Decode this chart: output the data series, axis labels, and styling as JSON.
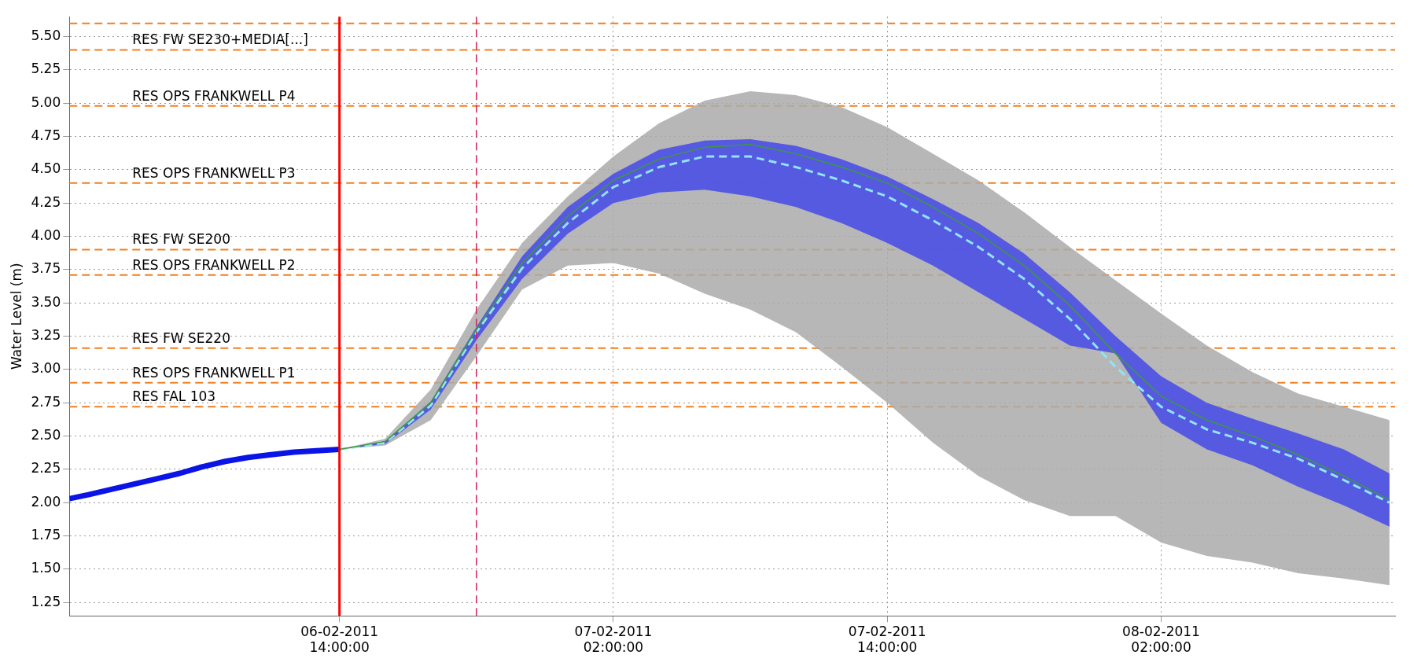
{
  "chart_data": {
    "type": "line",
    "ylabel": "Water Level (m)",
    "xlim": [
      "2011-02-06T02:10",
      "2011-02-08T12:15"
    ],
    "xticks": [
      {
        "value": "2011-02-06T14:00",
        "label": "06-02-2011\n14:00:00"
      },
      {
        "value": "2011-02-07T02:00",
        "label": "07-02-2011\n02:00:00"
      },
      {
        "value": "2011-02-07T14:00",
        "label": "07-02-2011\n14:00:00"
      },
      {
        "value": "2011-02-08T02:00",
        "label": "08-02-2011\n02:00:00"
      }
    ],
    "ylim": [
      1.15,
      5.65
    ],
    "yticks": [
      1.25,
      {
        "value": 1.5,
        "label": "1.50"
      },
      1.75,
      {
        "value": 2,
        "label": "2.00"
      },
      2.25,
      {
        "value": 2.5,
        "label": "2.50"
      },
      2.75,
      {
        "value": 3,
        "label": "3.00"
      },
      3.25,
      {
        "value": 3.5,
        "label": "3.50"
      },
      3.75,
      {
        "value": 4,
        "label": "4.00"
      },
      4.25,
      {
        "value": 4.5,
        "label": "4.50"
      },
      4.75,
      {
        "value": 5,
        "label": "5.00"
      },
      5.25,
      {
        "value": 5.5,
        "label": "5.50"
      }
    ],
    "grid": true,
    "legend": false,
    "marker": "none",
    "series": [
      {
        "type": "line",
        "color": "#0a14e6",
        "line_style": "solid",
        "x": [
          "2011-02-06T02:10",
          "2011-02-06T03:00",
          "2011-02-06T04:00",
          "2011-02-06T05:00",
          "2011-02-06T06:00",
          "2011-02-06T07:00",
          "2011-02-06T08:00",
          "2011-02-06T09:00",
          "2011-02-06T10:00",
          "2011-02-06T11:00",
          "2011-02-06T12:00",
          "2011-02-06T13:00",
          "2011-02-06T14:00"
        ],
        "values": [
          2.03,
          2.06,
          2.1,
          2.14,
          2.18,
          2.22,
          2.27,
          2.31,
          2.34,
          2.36,
          2.38,
          2.39,
          2.4
        ]
      },
      {
        "type": "line",
        "color": "#3c9a3c",
        "line_style": "solid",
        "x": [
          "2011-02-06T14:00",
          "2011-02-06T16:00",
          "2011-02-06T18:00",
          "2011-02-06T20:00",
          "2011-02-06T22:00",
          "2011-02-07T00:00",
          "2011-02-07T02:00",
          "2011-02-07T04:00",
          "2011-02-07T06:00",
          "2011-02-07T08:00",
          "2011-02-07T10:00",
          "2011-02-07T12:00",
          "2011-02-07T14:00",
          "2011-02-07T16:00",
          "2011-02-07T18:00",
          "2011-02-07T20:00",
          "2011-02-07T22:00",
          "2011-02-08T00:00",
          "2011-02-08T02:00",
          "2011-02-08T04:00",
          "2011-02-08T06:00",
          "2011-02-08T08:00",
          "2011-02-08T10:00",
          "2011-02-08T12:00"
        ],
        "values": [
          2.4,
          2.46,
          2.75,
          3.3,
          3.8,
          4.15,
          4.42,
          4.58,
          4.67,
          4.69,
          4.62,
          4.52,
          4.4,
          4.22,
          4.02,
          3.78,
          3.48,
          3.12,
          2.8,
          2.62,
          2.5,
          2.36,
          2.2,
          2.02
        ],
        "lower": [
          2.4,
          2.43,
          2.62,
          3.1,
          3.6,
          3.78,
          3.8,
          3.72,
          3.57,
          3.45,
          3.28,
          3.02,
          2.75,
          2.45,
          2.2,
          2.02,
          1.9,
          1.9,
          1.7,
          1.6,
          1.55,
          1.47,
          1.43,
          1.38
        ],
        "upper": [
          2.4,
          2.48,
          2.85,
          3.45,
          3.95,
          4.3,
          4.6,
          4.85,
          5.02,
          5.09,
          5.06,
          4.97,
          4.82,
          4.62,
          4.42,
          4.18,
          3.92,
          3.67,
          3.42,
          3.18,
          2.98,
          2.82,
          2.72,
          2.62
        ]
      },
      {
        "type": "line",
        "color": "#90e4f4",
        "line_style": "dashed",
        "x": [
          "2011-02-06T14:00",
          "2011-02-06T16:00",
          "2011-02-06T18:00",
          "2011-02-06T20:00",
          "2011-02-06T22:00",
          "2011-02-07T00:00",
          "2011-02-07T02:00",
          "2011-02-07T04:00",
          "2011-02-07T06:00",
          "2011-02-07T08:00",
          "2011-02-07T10:00",
          "2011-02-07T12:00",
          "2011-02-07T14:00",
          "2011-02-07T16:00",
          "2011-02-07T18:00",
          "2011-02-07T20:00",
          "2011-02-07T22:00",
          "2011-02-08T00:00",
          "2011-02-08T02:00",
          "2011-02-08T04:00",
          "2011-02-08T06:00",
          "2011-02-08T08:00",
          "2011-02-08T10:00",
          "2011-02-08T12:00"
        ],
        "values": [
          2.4,
          2.45,
          2.73,
          3.28,
          3.76,
          4.1,
          4.37,
          4.52,
          4.6,
          4.6,
          4.52,
          4.42,
          4.3,
          4.12,
          3.92,
          3.68,
          3.38,
          3.02,
          2.72,
          2.55,
          2.45,
          2.33,
          2.17,
          2.0
        ],
        "lower": [
          2.4,
          2.44,
          2.7,
          3.22,
          3.68,
          4.02,
          4.25,
          4.33,
          4.35,
          4.3,
          4.22,
          4.1,
          3.95,
          3.78,
          3.58,
          3.38,
          3.18,
          3.12,
          2.6,
          2.4,
          2.28,
          2.12,
          1.98,
          1.82
        ],
        "upper": [
          2.4,
          2.46,
          2.76,
          3.32,
          3.85,
          4.22,
          4.47,
          4.65,
          4.72,
          4.73,
          4.68,
          4.58,
          4.45,
          4.28,
          4.1,
          3.87,
          3.58,
          3.25,
          2.95,
          2.75,
          2.63,
          2.52,
          2.4,
          2.22
        ]
      }
    ],
    "ref_lines": [
      {
        "axis": "y",
        "value": 5.6,
        "color": "#f08020",
        "line_style": "dashed"
      },
      {
        "axis": "y",
        "value": 5.4,
        "label": "RES FW SE230+MEDIA[...]",
        "color": "#f08020",
        "line_style": "dashed"
      },
      {
        "axis": "y",
        "value": 4.98,
        "label": "RES OPS FRANKWELL P4",
        "color": "#f08020",
        "line_style": "dashed"
      },
      {
        "axis": "y",
        "value": 4.4,
        "label": "RES OPS FRANKWELL P3",
        "color": "#f08020",
        "line_style": "dashed"
      },
      {
        "axis": "y",
        "value": 3.9,
        "label": "RES FW SE200",
        "color": "#f08020",
        "line_style": "dashed"
      },
      {
        "axis": "y",
        "value": 3.71,
        "label": "RES OPS FRANKWELL P2",
        "color": "#f08020",
        "line_style": "dashed"
      },
      {
        "axis": "y",
        "value": 3.16,
        "label": "RES FW SE220",
        "color": "#f08020",
        "line_style": "dashed"
      },
      {
        "axis": "y",
        "value": 2.9,
        "label": "RES OPS FRANKWELL P1",
        "color": "#f08020",
        "line_style": "dashed"
      },
      {
        "axis": "y",
        "value": 2.72,
        "label": "RES FAL 103",
        "color": "#f08020",
        "line_style": "dashed"
      },
      {
        "axis": "x",
        "value": "2011-02-06T14:00",
        "color": "#ff0000",
        "line_style": "solid"
      },
      {
        "axis": "x",
        "value": "2011-02-06T20:00",
        "color": "#d02060",
        "line_style": "dashed"
      }
    ]
  }
}
